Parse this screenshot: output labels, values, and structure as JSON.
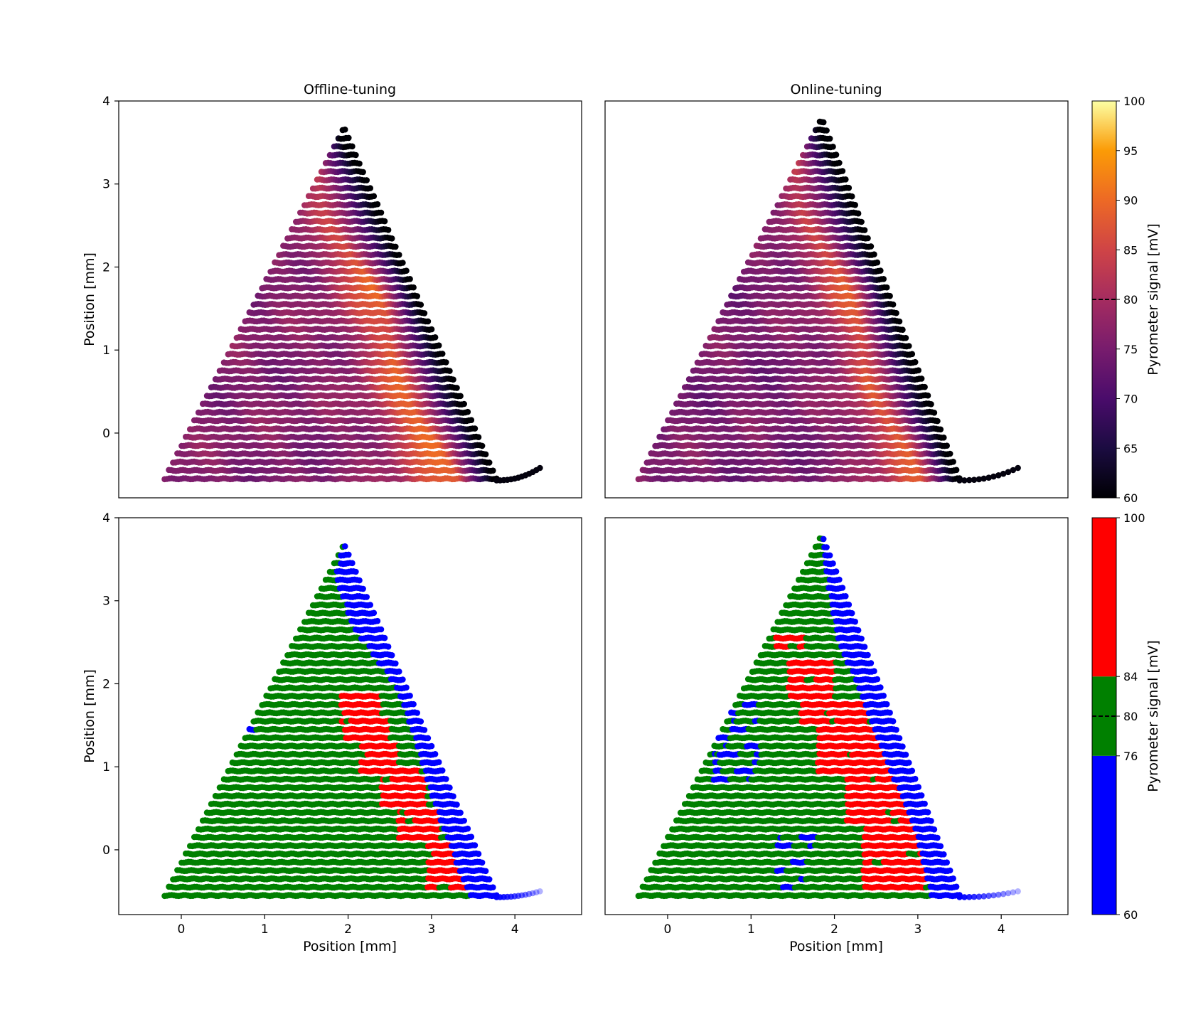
{
  "figure": {
    "panel_titles": [
      "Offline-tuning",
      "Online-tuning"
    ],
    "colorbar_top": {
      "label": "Pyrometer signal [mV]",
      "ticks": [
        60,
        65,
        70,
        75,
        80,
        85,
        90,
        95,
        100
      ],
      "range": [
        60,
        100
      ],
      "colormap": "inferno",
      "marker_value": 80
    },
    "colorbar_bottom": {
      "label": "Pyrometer signal [mV]",
      "ticks": [
        60,
        76,
        80,
        84,
        100
      ],
      "range": [
        60,
        100
      ],
      "bands": [
        {
          "from": 60,
          "to": 76,
          "color": "#0000ff"
        },
        {
          "from": 76,
          "to": 84,
          "color": "#008000"
        },
        {
          "from": 84,
          "to": 100,
          "color": "#ff0000"
        }
      ],
      "marker_value": 80
    }
  },
  "chart_data": [
    {
      "type": "scatter",
      "panel": "top-left",
      "title": "Offline-tuning",
      "xlabel": "",
      "ylabel": "Position [mm]",
      "xlim": [
        -0.75,
        4.8
      ],
      "ylim": [
        4,
        -0.78
      ],
      "xticks": [],
      "yticks": [
        0,
        1,
        2,
        3,
        4
      ],
      "color_mode": "continuous",
      "track": {
        "y_top": -0.55,
        "y_bottom": 3.68,
        "x_left_top": -0.2,
        "x_right_top": 3.78,
        "x_tip": 1.95,
        "tail_end": [
          4.3,
          -0.42
        ]
      },
      "fields": {
        "base": 76,
        "hot_ridge_top": 3.25,
        "hot_ridge_bottom": 1.9,
        "hot_peak": 91
      }
    },
    {
      "type": "scatter",
      "panel": "top-right",
      "title": "Online-tuning",
      "xlabel": "",
      "ylabel": "",
      "xlim": [
        -0.75,
        4.8
      ],
      "ylim": [
        4,
        -0.78
      ],
      "xticks": [],
      "yticks": [],
      "color_mode": "continuous",
      "track": {
        "y_top": -0.55,
        "y_bottom": 3.8,
        "x_left_top": -0.35,
        "x_right_top": 3.5,
        "x_tip": 1.85,
        "tail_end": [
          4.2,
          -0.42
        ]
      },
      "fields": {
        "base": 75,
        "hot_ridge_top": 3.1,
        "hot_ridge_bottom": 1.75,
        "hot_peak": 90
      }
    },
    {
      "type": "scatter",
      "panel": "bottom-left",
      "title": "",
      "xlabel": "Position [mm]",
      "ylabel": "Position [mm]",
      "xlim": [
        -0.75,
        4.8
      ],
      "ylim": [
        4,
        -0.78
      ],
      "xticks": [
        0,
        1,
        2,
        3,
        4
      ],
      "yticks": [
        0,
        1,
        2,
        3,
        4
      ],
      "color_mode": "bands",
      "track": {
        "y_top": -0.55,
        "y_bottom": 3.68,
        "x_left_top": -0.2,
        "x_right_top": 3.78,
        "x_tip": 1.95,
        "tail_end": [
          4.3,
          -0.5
        ]
      },
      "blue_edge": [
        [
          -0.55,
          3.45
        ],
        [
          0.5,
          3.05
        ],
        [
          1.5,
          2.75
        ],
        [
          2.0,
          2.55
        ],
        [
          2.7,
          2.05
        ],
        [
          3.3,
          1.85
        ],
        [
          3.7,
          1.95
        ]
      ],
      "red_regions": [
        {
          "y_from": -0.5,
          "y_to": 0.1,
          "x_from": 2.95,
          "x_to": 3.45
        },
        {
          "y_from": 0.1,
          "y_to": 0.5,
          "x_from": 2.6,
          "x_to": 3.1
        },
        {
          "y_from": 0.5,
          "y_to": 0.95,
          "x_from": 2.4,
          "x_to": 2.95
        },
        {
          "y_from": 0.95,
          "y_to": 1.3,
          "x_from": 2.15,
          "x_to": 2.6
        },
        {
          "y_from": 1.3,
          "y_to": 1.55,
          "x_from": 1.95,
          "x_to": 2.5
        },
        {
          "y_from": 1.55,
          "y_to": 1.9,
          "x_from": 1.9,
          "x_to": 2.4
        }
      ],
      "blue_patches": [
        {
          "y_from": 1.25,
          "y_to": 1.45,
          "x_from": 0.75,
          "x_to": 0.9
        }
      ]
    },
    {
      "type": "scatter",
      "panel": "bottom-right",
      "title": "",
      "xlabel": "Position [mm]",
      "ylabel": "",
      "xlim": [
        -0.75,
        4.8
      ],
      "ylim": [
        4,
        -0.78
      ],
      "xticks": [
        0,
        1,
        2,
        3,
        4
      ],
      "yticks": [],
      "color_mode": "bands",
      "track": {
        "y_top": -0.55,
        "y_bottom": 3.8,
        "x_left_top": -0.35,
        "x_right_top": 3.5,
        "x_tip": 1.85,
        "tail_end": [
          4.2,
          -0.5
        ]
      },
      "blue_edge": [
        [
          -0.55,
          3.15
        ],
        [
          0.3,
          2.95
        ],
        [
          1.0,
          2.65
        ],
        [
          1.8,
          2.35
        ],
        [
          2.5,
          2.05
        ],
        [
          3.0,
          1.95
        ],
        [
          3.4,
          1.9
        ],
        [
          3.8,
          1.85
        ]
      ],
      "red_regions": [
        {
          "y_from": -0.5,
          "y_to": 0.3,
          "x_from": 2.35,
          "x_to": 3.3
        },
        {
          "y_from": 0.3,
          "y_to": 0.9,
          "x_from": 2.15,
          "x_to": 3.0
        },
        {
          "y_from": 0.9,
          "y_to": 1.5,
          "x_from": 1.8,
          "x_to": 2.7
        },
        {
          "y_from": 1.5,
          "y_to": 1.8,
          "x_from": 1.6,
          "x_to": 2.4
        },
        {
          "y_from": 1.8,
          "y_to": 2.3,
          "x_from": 1.45,
          "x_to": 2.0
        },
        {
          "y_from": 2.45,
          "y_to": 2.6,
          "x_from": 1.3,
          "x_to": 1.65
        }
      ],
      "blue_patches": [
        {
          "y_from": -0.48,
          "y_to": -0.1,
          "x_from": 1.3,
          "x_to": 1.65
        },
        {
          "y_from": 0.05,
          "y_to": 0.2,
          "x_from": 1.3,
          "x_to": 1.8
        },
        {
          "y_from": 0.85,
          "y_to": 1.8,
          "x_from": 0.55,
          "x_to": 1.1
        }
      ]
    }
  ]
}
